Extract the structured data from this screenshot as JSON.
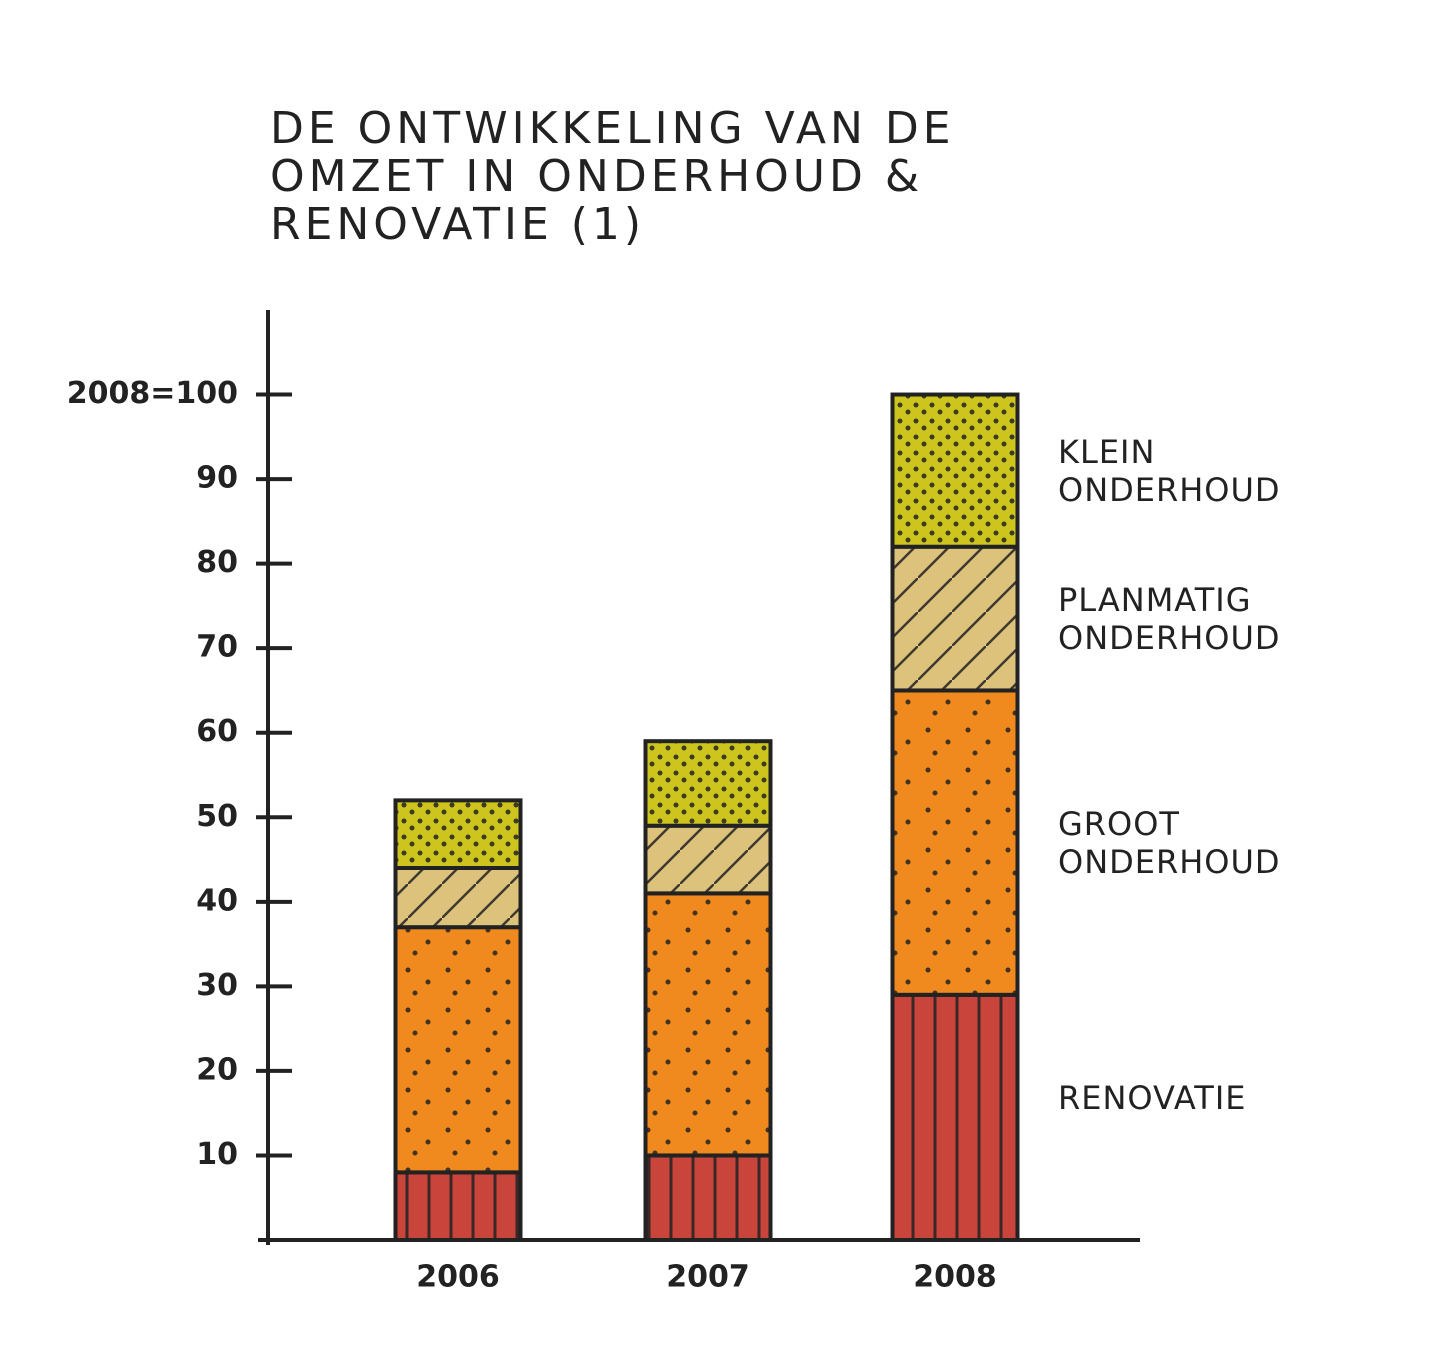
{
  "chart_data": {
    "type": "stacked_bar",
    "title": "DE ONTWIKKELING VAN DE OMZET IN ONDERHOUD & RENOVATIE (1)",
    "categories": [
      "2006",
      "2007",
      "2008"
    ],
    "series": [
      {
        "name": "RENOVATIE",
        "color": "#c9443a",
        "values": [
          8,
          10,
          29
        ]
      },
      {
        "name": "GROOT ONDERHOUD",
        "color": "#f08a1e",
        "values": [
          29,
          31,
          36
        ]
      },
      {
        "name": "PLANMATIG ONDERHOUD",
        "color": "#dcc27a",
        "values": [
          7,
          8,
          17
        ]
      },
      {
        "name": "KLEIN ONDERHOUD",
        "color": "#cdc41e",
        "values": [
          8,
          10,
          18
        ]
      }
    ],
    "ylim": [
      0,
      110
    ],
    "yticks": [
      10,
      20,
      30,
      40,
      50,
      60,
      70,
      80,
      90,
      {
        "value": 100,
        "label": "2008=100"
      }
    ]
  }
}
